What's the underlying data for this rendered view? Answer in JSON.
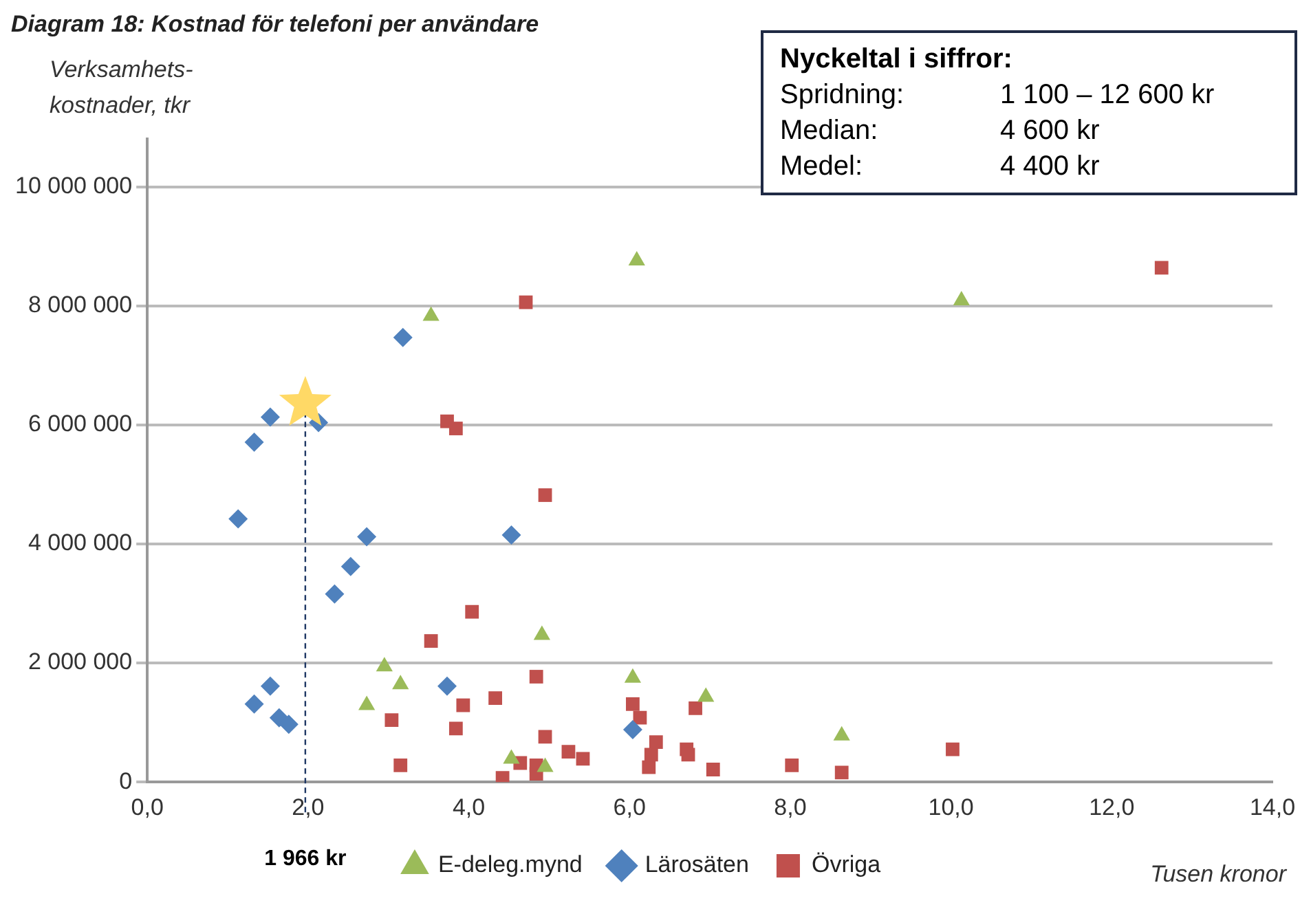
{
  "chart_data": {
    "type": "scatter",
    "title": "Diagram 18: Kostnad för telefoni per användare",
    "ylabel": "Verksamhets-\nkostnader, tkr",
    "xlabel": "Tusen kronor",
    "annotations": [
      "Nyckeltal i siffror:",
      "Spridning:\t1 100 – 12 600 kr",
      "Median:\t4 600 kr",
      "Medel:\t4 400 kr"
    ],
    "series": [
      {
        "name": "E-deleg.mynd",
        "color": "#9bbb59",
        "marker": "triangle",
        "x": [
          3.53,
          6.09,
          10.13,
          4.91,
          2.95,
          3.15,
          2.73,
          4.53,
          4.95,
          6.04,
          6.95,
          8.64
        ],
        "values": [
          7830000,
          8760000,
          8090000,
          2470000,
          1940000,
          1640000,
          1290000,
          390000,
          250000,
          1750000,
          1430000,
          780000
        ]
      },
      {
        "name": "Lärosäten",
        "color": "#4f81bd",
        "marker": "diamond",
        "x": [
          1.13,
          1.33,
          1.53,
          2.13,
          3.18,
          2.73,
          2.53,
          4.53,
          2.33,
          1.53,
          1.33,
          1.64,
          1.76,
          3.73,
          6.04
        ],
        "values": [
          4420000,
          5710000,
          6130000,
          6040000,
          7470000,
          4120000,
          3620000,
          4150000,
          3160000,
          1610000,
          1310000,
          1080000,
          970000,
          1610000,
          880000
        ]
      },
      {
        "name": "Övriga",
        "color": "#c0504d",
        "marker": "square",
        "x": [
          4.71,
          3.73,
          3.84,
          4.95,
          12.62,
          4.04,
          3.53,
          4.84,
          3.93,
          4.33,
          3.04,
          3.84,
          3.15,
          4.95,
          4.42,
          4.64,
          4.84,
          4.84,
          5.24,
          5.42,
          6.04,
          6.13,
          6.24,
          6.27,
          6.33,
          6.71,
          6.73,
          6.82,
          7.04,
          8.02,
          8.64,
          10.02
        ],
        "values": [
          8060000,
          6060000,
          5940000,
          4820000,
          8640000,
          2860000,
          2370000,
          1770000,
          1290000,
          1410000,
          1040000,
          900000,
          280000,
          760000,
          70000,
          320000,
          140000,
          280000,
          510000,
          390000,
          1310000,
          1080000,
          250000,
          460000,
          670000,
          550000,
          460000,
          1240000,
          210000,
          280000,
          160000,
          550000
        ]
      },
      {
        "color": "#ffd966",
        "marker": "star",
        "x": [
          1.966
        ],
        "values": [
          6360000
        ]
      }
    ],
    "ref_lines": [
      {
        "axis": "x",
        "value": 1.966,
        "label": "1 966 kr",
        "line_style": "dashed",
        "color": "#1f3864"
      }
    ],
    "xlim": [
      0,
      14
    ],
    "xticks": [
      {
        "value": 0,
        "label": "0,0"
      },
      {
        "value": 2,
        "label": "2,0"
      },
      {
        "value": 4,
        "label": "4,0"
      },
      {
        "value": 6,
        "label": "6,0"
      },
      {
        "value": 8,
        "label": "8,0"
      },
      {
        "value": 10,
        "label": "10,0"
      },
      {
        "value": 12,
        "label": "12,0"
      },
      {
        "value": 14,
        "label": "14,0"
      }
    ],
    "ylim": [
      0,
      10800000
    ],
    "yticks": [
      0,
      {
        "value": 2000000,
        "label": "2 000 000"
      },
      {
        "value": 4000000,
        "label": "4 000 000"
      },
      {
        "value": 6000000,
        "label": "6 000 000"
      },
      {
        "value": 8000000,
        "label": "8 000 000"
      },
      {
        "value": 10000000,
        "label": "10 000 000"
      }
    ],
    "grid": "y",
    "legend": "bottom"
  }
}
